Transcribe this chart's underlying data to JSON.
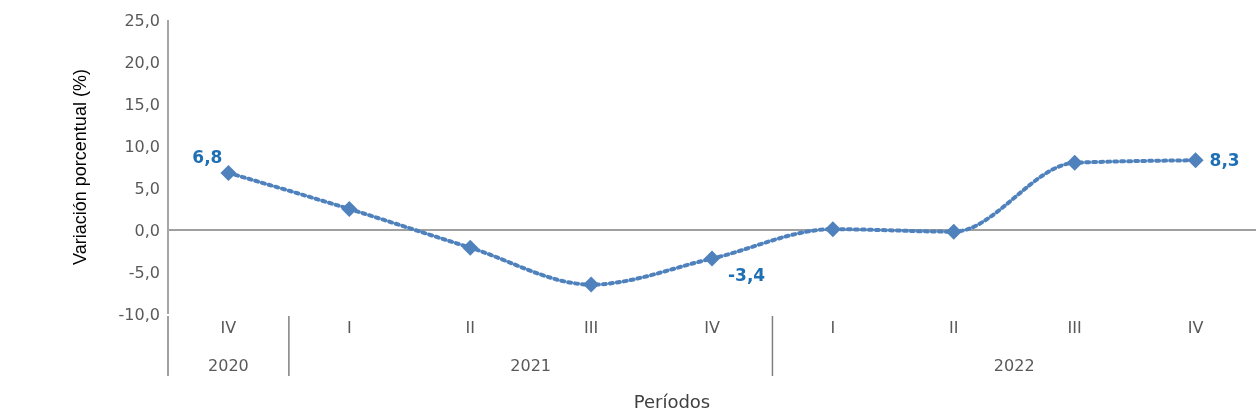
{
  "chart_data": {
    "type": "line",
    "xlabel": "Períodos",
    "ylabel": "Variación porcentual (%)",
    "categories": [
      "IV",
      "I",
      "II",
      "III",
      "IV",
      "I",
      "II",
      "III",
      "IV"
    ],
    "values": [
      6.8,
      2.5,
      -2.1,
      -6.5,
      -3.4,
      0.1,
      -0.2,
      8.0,
      8.3
    ],
    "value_labels": [
      "6,8",
      null,
      null,
      null,
      "-3,4",
      null,
      null,
      null,
      "8,3"
    ],
    "color": "#4f81bd",
    "marker": "diamond",
    "line_style": "dotted",
    "grid": false,
    "legend": false,
    "ylim": [
      -10,
      25
    ],
    "yticks": [
      {
        "value": -10,
        "label": "-10,0"
      },
      {
        "value": -5,
        "label": "-5,0"
      },
      {
        "value": 0,
        "label": "0,0"
      },
      {
        "value": 5,
        "label": "5,0"
      },
      {
        "value": 10,
        "label": "10,0"
      },
      {
        "value": 15,
        "label": "15,0"
      },
      {
        "value": 20,
        "label": "20,0"
      },
      {
        "value": 25,
        "label": "25,0"
      }
    ],
    "ref_lines": [
      {
        "axis": "y",
        "value": 0,
        "color": "#808080"
      }
    ],
    "annotations": [
      "2020",
      "2021",
      "2022"
    ]
  }
}
